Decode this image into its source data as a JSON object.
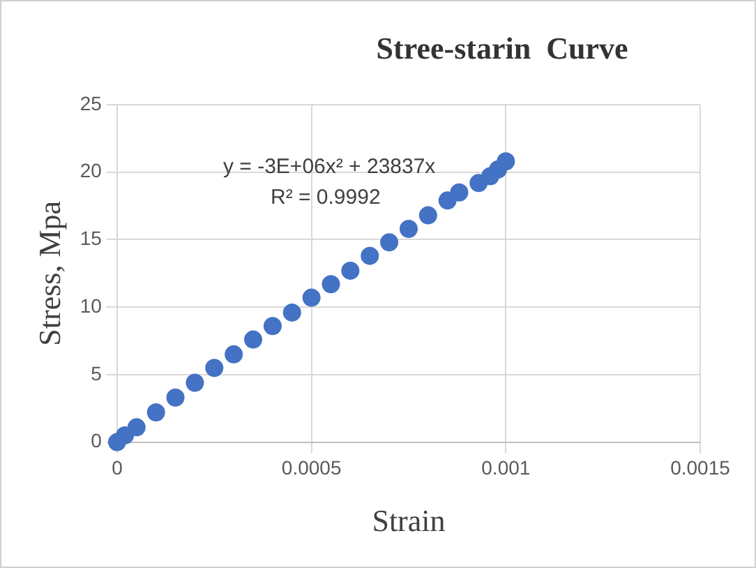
{
  "chart_data": {
    "type": "scatter",
    "title": "Stree-starin  Curve",
    "xlabel": "Strain",
    "ylabel": "Stress, Mpa",
    "x": [
      0,
      2e-05,
      5e-05,
      0.0001,
      0.00015,
      0.0002,
      0.00025,
      0.0003,
      0.00035,
      0.0004,
      0.00045,
      0.0005,
      0.00055,
      0.0006,
      0.00065,
      0.0007,
      0.00075,
      0.0008,
      0.00085,
      0.00088,
      0.00093,
      0.00096,
      0.00098,
      0.001
    ],
    "series": [
      {
        "color": "#4472c4",
        "values": [
          0,
          0.5,
          1.1,
          2.2,
          3.3,
          4.4,
          5.5,
          6.5,
          7.6,
          8.6,
          9.6,
          10.7,
          11.7,
          12.7,
          13.8,
          14.8,
          15.8,
          16.8,
          17.9,
          18.5,
          19.2,
          19.7,
          20.2,
          20.8
        ]
      }
    ],
    "xlim": [
      0,
      0.0015
    ],
    "xticks": [
      0,
      0.0005,
      0.001,
      0.0015
    ],
    "ylim": [
      0,
      25
    ],
    "yticks": [
      0,
      5,
      10,
      15,
      20,
      25
    ],
    "annotations": [
      "y = -3E+06x² + 23837x",
      "R² = 0.9992"
    ],
    "grid": true,
    "legend": false,
    "marker": "circle"
  }
}
